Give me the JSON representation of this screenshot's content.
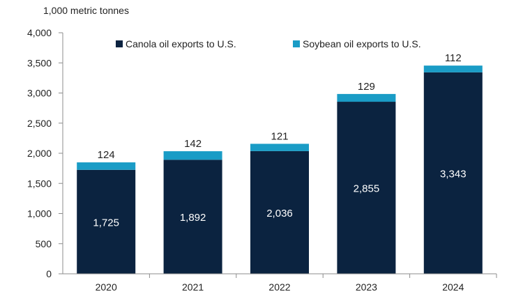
{
  "chart_data": {
    "type": "bar",
    "stacked": true,
    "unit_label": "1,000 metric tonnes",
    "categories": [
      "2020",
      "2021",
      "2022",
      "2023",
      "2024"
    ],
    "series": [
      {
        "name": "Canola oil exports to U.S.",
        "values": [
          1725,
          1892,
          2036,
          2855,
          3343
        ],
        "color": "#0b2340"
      },
      {
        "name": "Soybean oil exports to U.S.",
        "values": [
          124,
          142,
          121,
          129,
          112
        ],
        "color": "#1a9cc6"
      }
    ],
    "data_labels": {
      "canola": [
        "1,725",
        "1,892",
        "2,036",
        "2,855",
        "3,343"
      ],
      "soybean": [
        "124",
        "142",
        "121",
        "129",
        "112"
      ]
    },
    "y_tick_labels": [
      "0",
      "500",
      "1,000",
      "1,500",
      "2,000",
      "2,500",
      "3,000",
      "3,500",
      "4,000"
    ],
    "ylim": [
      0,
      4000
    ],
    "ytick_step": 500,
    "grid": false,
    "legend_position": "top"
  }
}
